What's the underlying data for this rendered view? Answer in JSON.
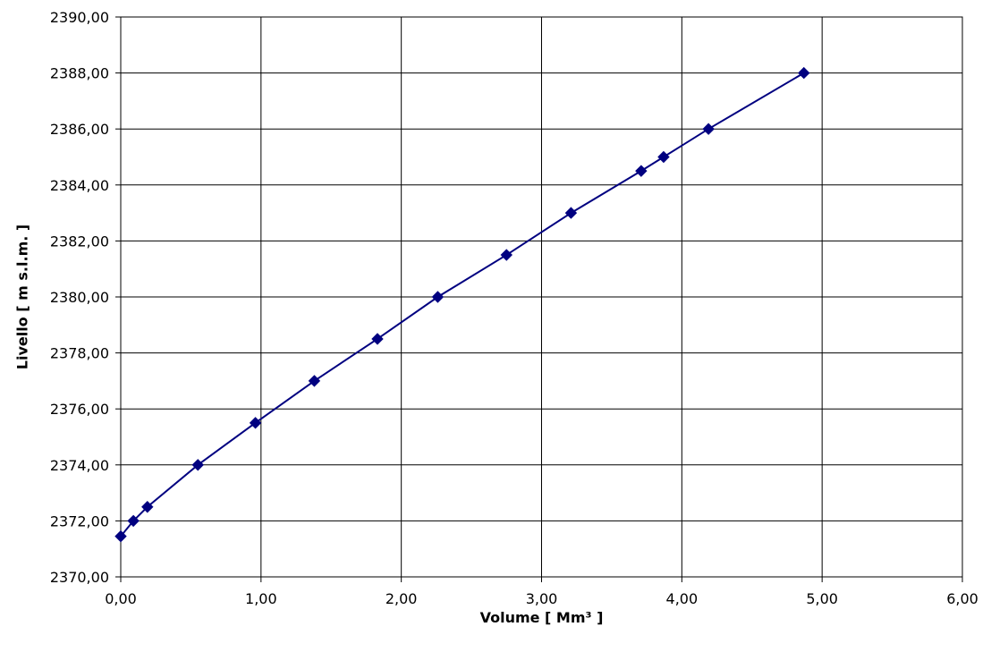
{
  "chart_data": {
    "type": "line",
    "title": "",
    "xlabel": "Volume [ Mm³ ]",
    "ylabel": "Livello [ m s.l.m. ]",
    "xlim": [
      0,
      6
    ],
    "ylim": [
      2370,
      2390
    ],
    "x_ticks": [
      "0,00",
      "1,00",
      "2,00",
      "3,00",
      "4,00",
      "5,00",
      "6,00"
    ],
    "y_ticks": [
      "2370,00",
      "2372,00",
      "2374,00",
      "2376,00",
      "2378,00",
      "2380,00",
      "2382,00",
      "2384,00",
      "2386,00",
      "2388,00",
      "2390,00"
    ],
    "grid": true,
    "legend": "none",
    "series": [
      {
        "color": "#000080",
        "marker": "diamond",
        "points": [
          {
            "x": 0.0,
            "y": 2371.45
          },
          {
            "x": 0.09,
            "y": 2372.0
          },
          {
            "x": 0.19,
            "y": 2372.5
          },
          {
            "x": 0.55,
            "y": 2374.0
          },
          {
            "x": 0.96,
            "y": 2375.5
          },
          {
            "x": 1.38,
            "y": 2377.0
          },
          {
            "x": 1.83,
            "y": 2378.5
          },
          {
            "x": 2.26,
            "y": 2380.0
          },
          {
            "x": 2.75,
            "y": 2381.5
          },
          {
            "x": 3.21,
            "y": 2383.0
          },
          {
            "x": 3.71,
            "y": 2384.5
          },
          {
            "x": 3.87,
            "y": 2385.0
          },
          {
            "x": 4.19,
            "y": 2386.0
          },
          {
            "x": 4.87,
            "y": 2388.0
          }
        ]
      }
    ]
  }
}
